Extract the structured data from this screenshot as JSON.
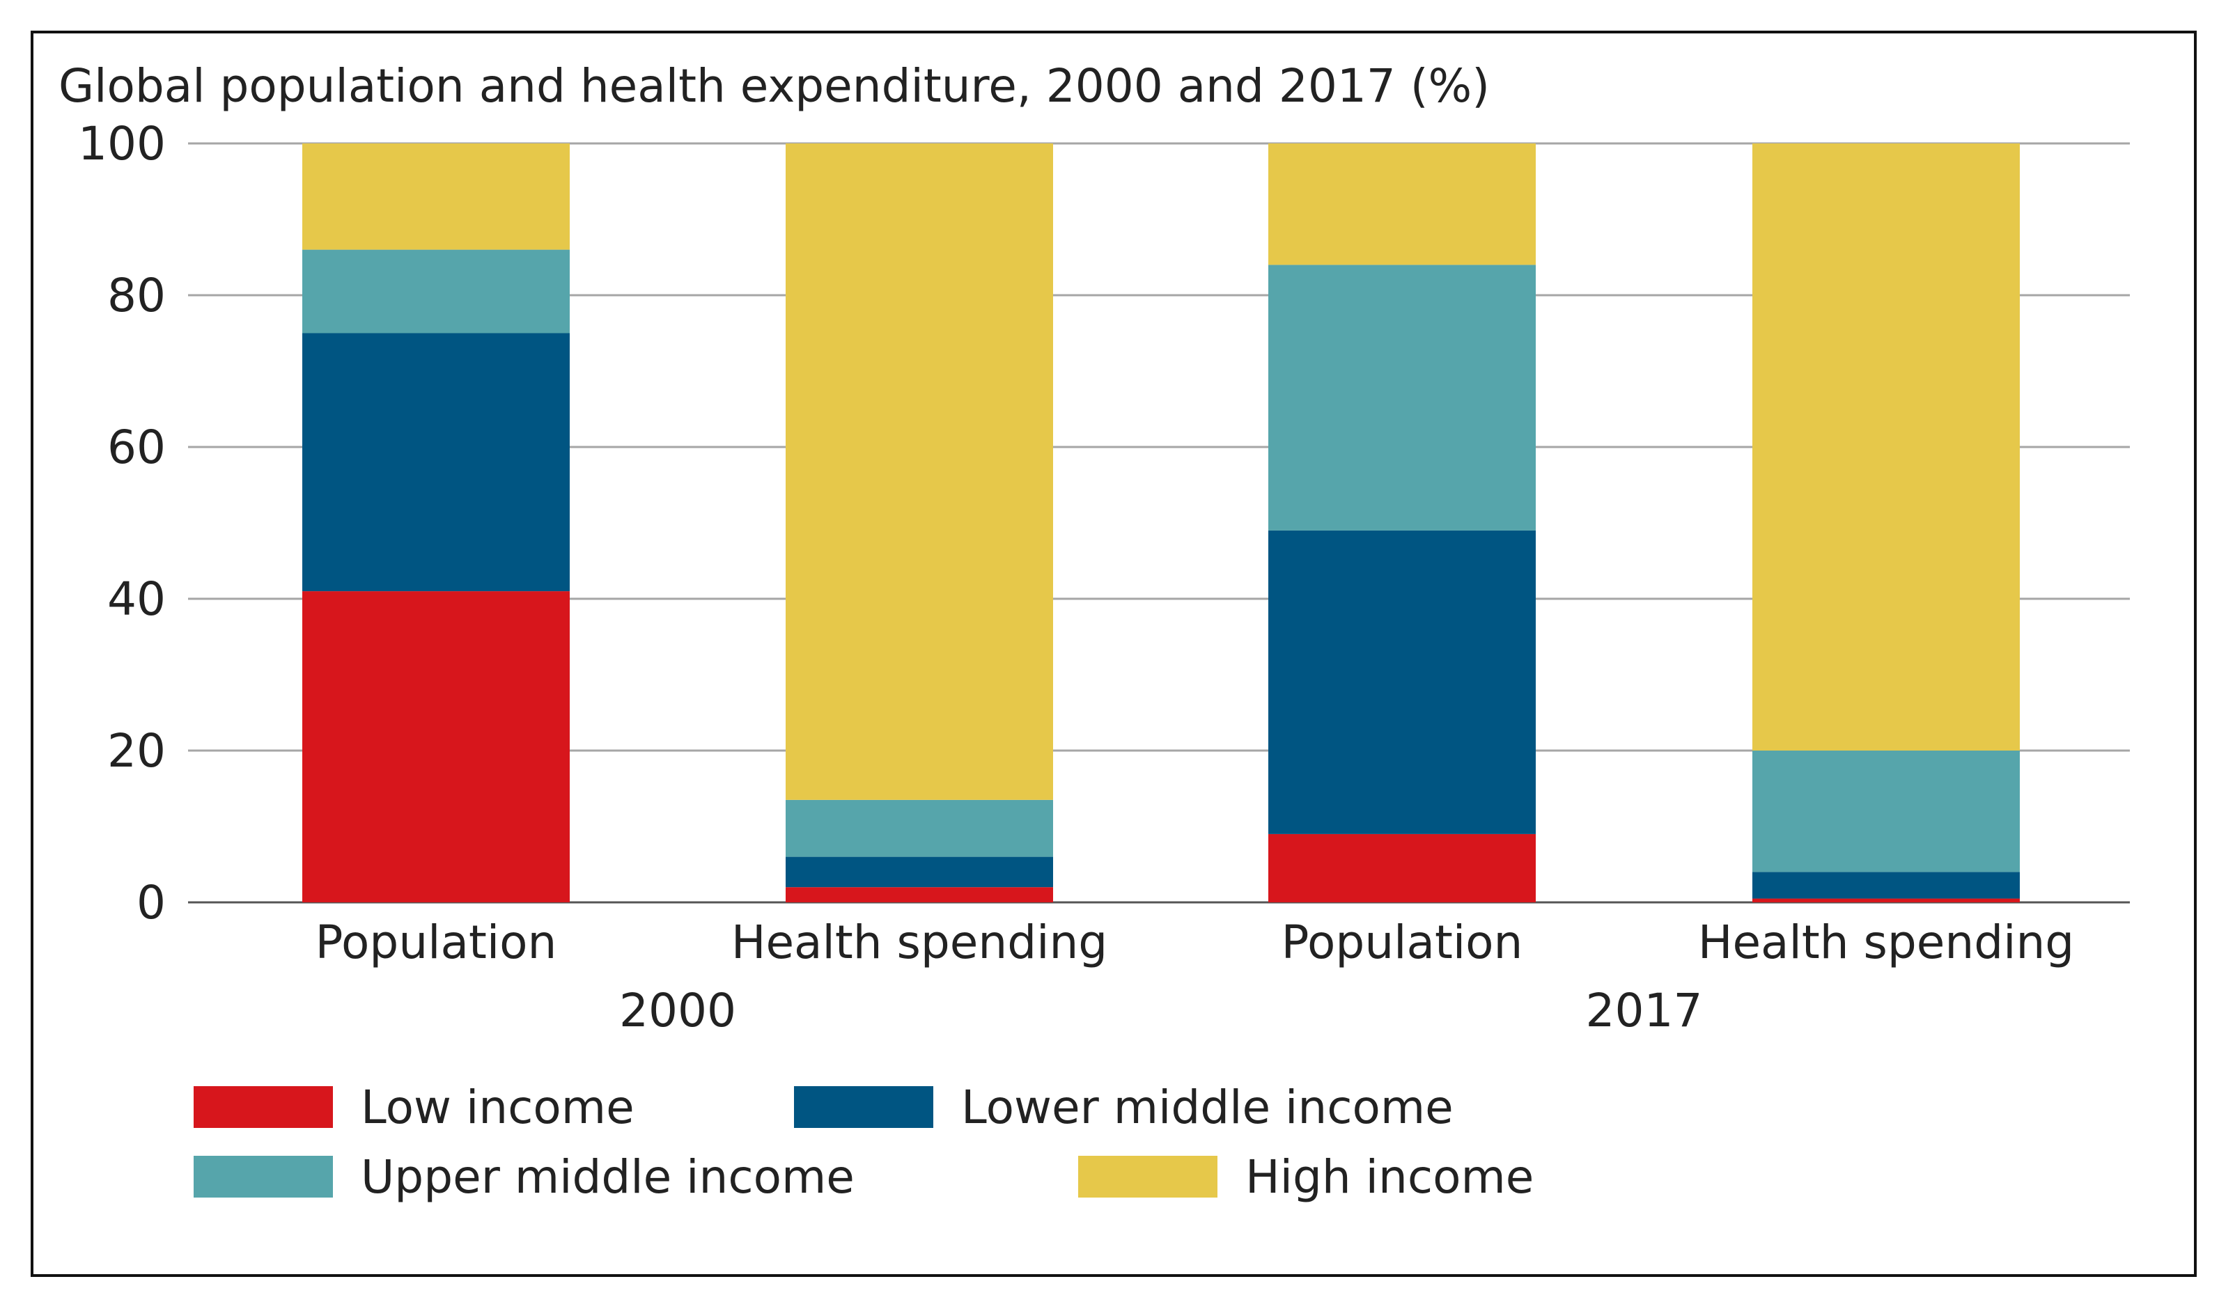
{
  "chart_data": {
    "type": "bar",
    "stacked": true,
    "title": "Global population and health expenditure, 2000 and 2017 (%)",
    "xlabel": "",
    "ylabel": "",
    "ylim": [
      0,
      100
    ],
    "yticks": [
      0,
      20,
      40,
      60,
      80,
      100
    ],
    "grid": true,
    "categories": [
      "Population",
      "Health spending",
      "Population",
      "Health spending"
    ],
    "groups": [
      {
        "label": "2000",
        "categories": [
          0,
          1
        ]
      },
      {
        "label": "2017",
        "categories": [
          2,
          3
        ]
      }
    ],
    "series": [
      {
        "name": "Low income",
        "color": "#d7161c",
        "values": [
          41,
          2,
          9,
          0.5
        ]
      },
      {
        "name": "Lower middle income",
        "color": "#005582",
        "values": [
          34,
          4,
          40,
          3.5
        ]
      },
      {
        "name": "Upper middle income",
        "color": "#56a5ab",
        "values": [
          11,
          7.5,
          35,
          16
        ]
      },
      {
        "name": "High income",
        "color": "#e6c84a",
        "values": [
          14,
          86.5,
          16,
          80
        ]
      }
    ],
    "legend_position": "bottom-left"
  }
}
